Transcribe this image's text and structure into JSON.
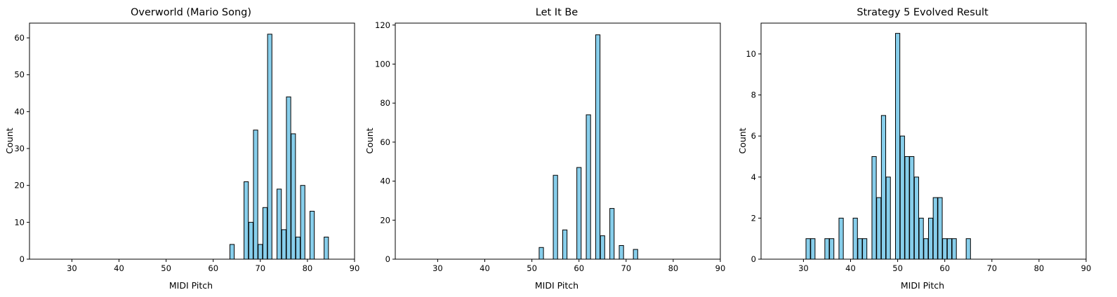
{
  "figure": {
    "panels": [
      {
        "title": "Overworld (Mario Song)",
        "xlabel": "MIDI Pitch",
        "ylabel": "Count"
      },
      {
        "title": "Let It Be",
        "xlabel": "MIDI Pitch",
        "ylabel": "Count"
      },
      {
        "title": "Strategy 5 Evolved Result",
        "xlabel": "MIDI Pitch",
        "ylabel": "Count"
      }
    ]
  },
  "colors": {
    "bar_fill": "#87CEEB",
    "bar_edge": "#000000"
  },
  "chart_data": [
    {
      "type": "bar",
      "title": "Overworld (Mario Song)",
      "xlabel": "MIDI Pitch",
      "ylabel": "Count",
      "xlim": [
        21,
        90
      ],
      "ylim": [
        0,
        64
      ],
      "xticks": [
        30,
        40,
        50,
        60,
        70,
        80,
        90
      ],
      "yticks": [
        0,
        10,
        20,
        30,
        40,
        50,
        60
      ],
      "x": [
        64,
        67,
        68,
        69,
        70,
        71,
        72,
        74,
        75,
        76,
        77,
        78,
        79,
        81,
        84
      ],
      "values": [
        4,
        21,
        10,
        35,
        4,
        14,
        61,
        19,
        8,
        44,
        34,
        6,
        20,
        13,
        6
      ]
    },
    {
      "type": "bar",
      "title": "Let It Be",
      "xlabel": "MIDI Pitch",
      "ylabel": "Count",
      "xlim": [
        21,
        90
      ],
      "ylim": [
        0,
        121
      ],
      "xticks": [
        30,
        40,
        50,
        60,
        70,
        80,
        90
      ],
      "yticks": [
        0,
        20,
        40,
        60,
        80,
        100,
        120
      ],
      "x": [
        52,
        55,
        57,
        60,
        62,
        64,
        65,
        67,
        69,
        72
      ],
      "values": [
        6,
        43,
        15,
        47,
        74,
        115,
        12,
        26,
        7,
        5
      ]
    },
    {
      "type": "bar",
      "title": "Strategy 5 Evolved Result",
      "xlabel": "MIDI Pitch",
      "ylabel": "Count",
      "xlim": [
        21,
        90
      ],
      "ylim": [
        0,
        11.5
      ],
      "xticks": [
        30,
        40,
        50,
        60,
        70,
        80,
        90
      ],
      "yticks": [
        0,
        2,
        4,
        6,
        8,
        10
      ],
      "x": [
        31,
        32,
        35,
        36,
        38,
        41,
        42,
        43,
        45,
        46,
        47,
        48,
        50,
        51,
        52,
        53,
        54,
        55,
        56,
        57,
        58,
        59,
        60,
        61,
        62,
        65
      ],
      "values": [
        1,
        1,
        1,
        1,
        2,
        2,
        1,
        1,
        5,
        3,
        7,
        4,
        11,
        6,
        5,
        5,
        4,
        2,
        1,
        2,
        3,
        3,
        1,
        1,
        1,
        1
      ]
    }
  ]
}
